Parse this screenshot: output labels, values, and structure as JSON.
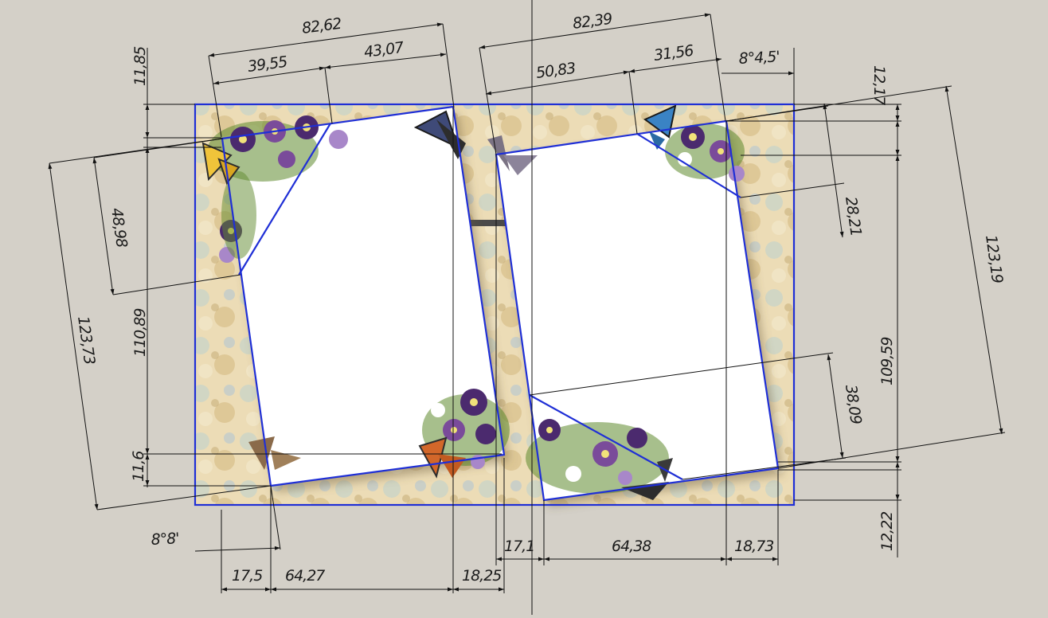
{
  "drawing": {
    "background_color": "#d4d0c8",
    "outline_color": "#1f2fd6",
    "dimension_color": "#111111",
    "page_color": "#ffffff",
    "texture_colors": [
      "#efe0b8",
      "#c6d2c8",
      "#dcc28e",
      "#b9c9cf",
      "#f3e8cc"
    ],
    "flower_colors": [
      "#4b2a6e",
      "#7a4b9a",
      "#a887c9",
      "#f1e27a",
      "#5f8a2e",
      "#ffffff"
    ],
    "butterfly_colors": [
      "#f0c43a",
      "#3a83c4",
      "#7b7384",
      "#d2672a",
      "#8a6a4a",
      "#2d2d2d"
    ],
    "handle_color": "#4a4a4a"
  },
  "dimensions": {
    "top_left_total": "82,62",
    "top_left_a": "39,55",
    "top_left_b": "43,07",
    "top_right_total": "82,39",
    "top_right_a": "50,83",
    "top_right_b": "31,56",
    "angle_top_right": "8°4,5'",
    "left_small_top": "11,85",
    "left_corner_diag": "48,98",
    "left_total": "123,73",
    "left_middle": "110,89",
    "left_small_bottom": "11,6",
    "angle_bottom_left": "8°8'",
    "bottom_left_a": "17,5",
    "bottom_left_b": "64,27",
    "bottom_left_c": "18,25",
    "bottom_right_a": "17,1",
    "bottom_right_b": "64,38",
    "bottom_right_c": "18,73",
    "right_small_top": "12,17",
    "right_corner_diag": "28,21",
    "right_total": "123,19",
    "right_middle": "109,59",
    "right_bottom_diag": "38,09",
    "right_small_bottom": "12,22"
  }
}
